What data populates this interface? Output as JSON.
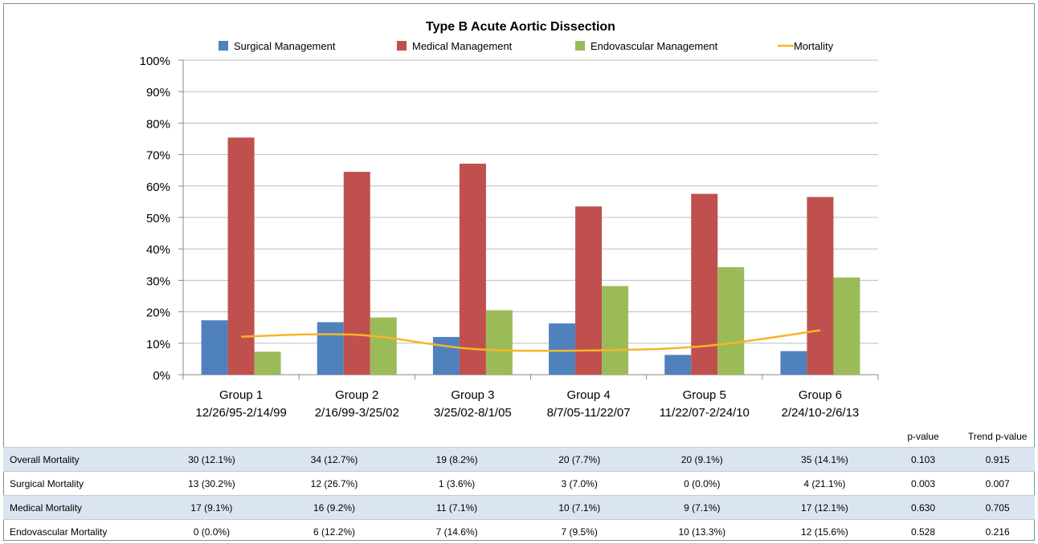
{
  "chart_data": {
    "type": "bar",
    "title": "Type B Acute Aortic Dissection",
    "categories": [
      [
        "Group 1",
        "12/26/95-2/14/99"
      ],
      [
        "Group 2",
        "2/16/99-3/25/02"
      ],
      [
        "Group 3",
        "3/25/02-8/1/05"
      ],
      [
        "Group 4",
        "8/7/05-11/22/07"
      ],
      [
        "Group 5",
        "11/22/07-2/24/10"
      ],
      [
        "Group 6",
        "2/24/10-2/6/13"
      ]
    ],
    "series": [
      {
        "name": "Surgical Management",
        "type": "bar",
        "color": "#4f81bd",
        "values": [
          17.3,
          16.7,
          12.0,
          16.3,
          6.3,
          7.5
        ]
      },
      {
        "name": "Medical Management",
        "type": "bar",
        "color": "#c0504d",
        "values": [
          75.4,
          64.5,
          67.1,
          53.5,
          57.5,
          56.5
        ]
      },
      {
        "name": "Endovascular Management",
        "type": "bar",
        "color": "#9bbb59",
        "values": [
          7.3,
          18.2,
          20.5,
          28.2,
          34.2,
          30.9
        ]
      },
      {
        "name": "Mortality",
        "type": "line",
        "color": "#f7b528",
        "values": [
          12.1,
          12.7,
          8.2,
          7.7,
          9.1,
          14.1
        ]
      }
    ],
    "ylim": [
      0,
      100
    ],
    "yticks": [
      "0%",
      "10%",
      "20%",
      "30%",
      "40%",
      "50%",
      "60%",
      "70%",
      "80%",
      "90%",
      "100%"
    ],
    "grid": true,
    "legend_position": "top",
    "xlabel": "",
    "ylabel": ""
  },
  "table": {
    "headers": {
      "p_value": "p-value",
      "trend_p_value": "Trend p-value"
    },
    "rows": [
      {
        "label": "Overall Mortality",
        "values": [
          "30 (12.1%)",
          "34 (12.7%)",
          "19 (8.2%)",
          "20 (7.7%)",
          "20 (9.1%)",
          "35 (14.1%)"
        ],
        "p_value": "0.103",
        "trend_p_value": "0.915"
      },
      {
        "label": "Surgical Mortality",
        "values": [
          "13 (30.2%)",
          "12 (26.7%)",
          "1 (3.6%)",
          "3 (7.0%)",
          "0 (0.0%)",
          "4 (21.1%)"
        ],
        "p_value": "0.003",
        "trend_p_value": "0.007"
      },
      {
        "label": "Medical Mortality",
        "values": [
          "17 (9.1%)",
          "16 (9.2%)",
          "11 (7.1%)",
          "10 (7.1%)",
          "9 (7.1%)",
          "17 (12.1%)"
        ],
        "p_value": "0.630",
        "trend_p_value": "0.705"
      },
      {
        "label": "Endovascular Mortality",
        "values": [
          "0 (0.0%)",
          "6 (12.2%)",
          "7 (14.6%)",
          "7 (9.5%)",
          "10 (13.3%)",
          "12 (15.6%)"
        ],
        "p_value": "0.528",
        "trend_p_value": "0.216"
      }
    ]
  }
}
